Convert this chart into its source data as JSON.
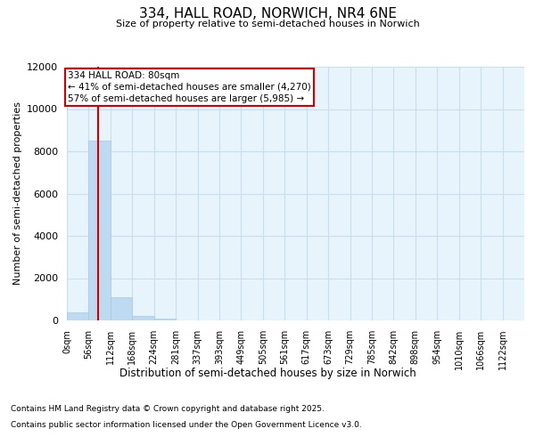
{
  "title": "334, HALL ROAD, NORWICH, NR4 6NE",
  "subtitle": "Size of property relative to semi-detached houses in Norwich",
  "xlabel": "Distribution of semi-detached houses by size in Norwich",
  "ylabel": "Number of semi-detached properties",
  "property_label": "334 HALL ROAD: 80sqm",
  "annotation_line1": "← 41% of semi-detached houses are smaller (4,270)",
  "annotation_line2": "57% of semi-detached houses are larger (5,985) →",
  "property_size": 80,
  "bin_width": 56,
  "num_bins": 21,
  "bar_values": [
    400,
    8500,
    1100,
    200,
    100,
    0,
    0,
    0,
    0,
    0,
    0,
    0,
    0,
    0,
    0,
    0,
    0,
    0,
    0,
    0,
    0
  ],
  "tick_labels": [
    "0sqm",
    "56sqm",
    "112sqm",
    "168sqm",
    "224sqm",
    "281sqm",
    "337sqm",
    "393sqm",
    "449sqm",
    "505sqm",
    "561sqm",
    "617sqm",
    "673sqm",
    "729sqm",
    "785sqm",
    "842sqm",
    "898sqm",
    "954sqm",
    "1010sqm",
    "1066sqm",
    "1122sqm"
  ],
  "bar_color": "#BEDAF0",
  "bar_edgecolor": "#A8C8E8",
  "grid_color": "#C8DFF0",
  "vline_color": "#CC0000",
  "annotation_box_edgecolor": "#CC0000",
  "background_color": "#E8F4FB",
  "ylim": [
    0,
    12000
  ],
  "yticks": [
    0,
    2000,
    4000,
    6000,
    8000,
    10000,
    12000
  ],
  "footnote1": "Contains HM Land Registry data © Crown copyright and database right 2025.",
  "footnote2": "Contains public sector information licensed under the Open Government Licence v3.0."
}
